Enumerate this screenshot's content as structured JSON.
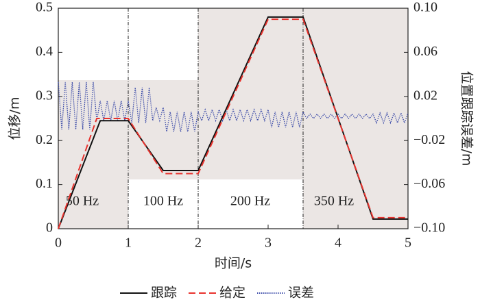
{
  "chart_data": {
    "type": "line",
    "xlabel": "时间/s",
    "ylabel": "位移/m",
    "y2label": "位置跟踪误差/m",
    "xlim": [
      0,
      5
    ],
    "xticks": [
      0,
      1,
      2,
      3,
      4,
      5
    ],
    "ylim": [
      0,
      0.5
    ],
    "yticks": [
      0,
      0.1,
      0.2,
      0.3,
      0.4,
      0.5
    ],
    "y2lim": [
      -0.1,
      0.1
    ],
    "y2ticks": [
      {
        "value": -0.1,
        "label": "−0.10"
      },
      {
        "value": -0.06,
        "label": "−0.06"
      },
      {
        "value": -0.02,
        "label": "−0.02"
      },
      {
        "value": 0.02,
        "label": "0.02"
      },
      {
        "value": 0.06,
        "label": "0.06"
      },
      {
        "value": 0.1,
        "label": "0.10"
      }
    ],
    "vlines": [
      1,
      2,
      3.5
    ],
    "annotations": [
      "50 Hz",
      "100 Hz",
      "200 Hz",
      "350 Hz"
    ],
    "legend": "bottom",
    "series": [
      {
        "name": "跟踪",
        "color": "#111111",
        "dash": "solid",
        "x": [
          0,
          0.6,
          1,
          1.5,
          2,
          3,
          3.5,
          4.5,
          5
        ],
        "values": [
          0,
          0.245,
          0.245,
          0.132,
          0.132,
          0.48,
          0.48,
          0.022,
          0.022
        ]
      },
      {
        "name": "给定",
        "color": "#e8322d",
        "dash": "dashed",
        "x": [
          0,
          0.55,
          1,
          1.5,
          2,
          3,
          3.5,
          4.5,
          5
        ],
        "values": [
          0,
          0.25,
          0.25,
          0.125,
          0.125,
          0.475,
          0.475,
          0.025,
          0.025
        ]
      },
      {
        "name": "误差",
        "color": "#3a4aa8",
        "dash": "dotted",
        "axis": "y2",
        "x": [
          0,
          0.05,
          0.1,
          0.15,
          0.2,
          0.25,
          0.3,
          0.35,
          0.4,
          0.45,
          0.5,
          0.55,
          0.6,
          0.65,
          0.7,
          0.75,
          0.8,
          0.85,
          0.9,
          0.95,
          1,
          1.05,
          1.1,
          1.15,
          1.2,
          1.25,
          1.3,
          1.35,
          1.4,
          1.45,
          1.5,
          1.55,
          1.6,
          1.65,
          1.7,
          1.75,
          1.8,
          1.85,
          1.9,
          1.95,
          2,
          2.05,
          2.1,
          2.15,
          2.2,
          2.25,
          2.3,
          2.35,
          2.4,
          2.45,
          2.5,
          2.55,
          2.6,
          2.65,
          2.7,
          2.75,
          2.8,
          2.85,
          2.9,
          2.95,
          3,
          3.05,
          3.1,
          3.15,
          3.2,
          3.25,
          3.3,
          3.35,
          3.4,
          3.45,
          3.5,
          3.55,
          3.6,
          3.65,
          3.7,
          3.75,
          3.8,
          3.85,
          3.9,
          3.95,
          4,
          4.05,
          4.1,
          4.15,
          4.2,
          4.25,
          4.3,
          4.35,
          4.4,
          4.45,
          4.5,
          4.55,
          4.6,
          4.65,
          4.7,
          4.75,
          4.8,
          4.85,
          4.9,
          4.95,
          5
        ],
        "values": [
          0.033,
          -0.01,
          0.033,
          -0.01,
          0.033,
          -0.01,
          0.033,
          -0.01,
          0.033,
          -0.01,
          0.033,
          -0.002,
          0.016,
          -0.002,
          0.016,
          -0.002,
          0.016,
          -0.002,
          0.016,
          -0.002,
          0.016,
          -0.004,
          0.028,
          -0.004,
          0.028,
          -0.004,
          0.028,
          -0.002,
          0.01,
          -0.002,
          0.01,
          -0.012,
          0.006,
          -0.012,
          0.006,
          -0.012,
          0.006,
          -0.012,
          0.006,
          -0.012,
          0.006,
          -0.002,
          0.008,
          -0.002,
          0.008,
          -0.002,
          0.008,
          -0.002,
          0.008,
          -0.002,
          0.008,
          -0.002,
          0.008,
          -0.002,
          0.008,
          -0.002,
          0.008,
          -0.002,
          0.008,
          -0.002,
          0.008,
          -0.008,
          0.006,
          -0.008,
          0.006,
          -0.008,
          0.006,
          -0.008,
          0.006,
          -0.008,
          0.006,
          0,
          0.004,
          0,
          0.004,
          0,
          0.004,
          0,
          0.004,
          0,
          0.004,
          0,
          0.004,
          0,
          0.004,
          0,
          0.004,
          0,
          0.004,
          0,
          0.004,
          -0.004,
          0.005,
          -0.004,
          0.005,
          -0.004,
          0.005,
          -0.004,
          0.005,
          -0.004,
          0.005
        ]
      }
    ]
  }
}
